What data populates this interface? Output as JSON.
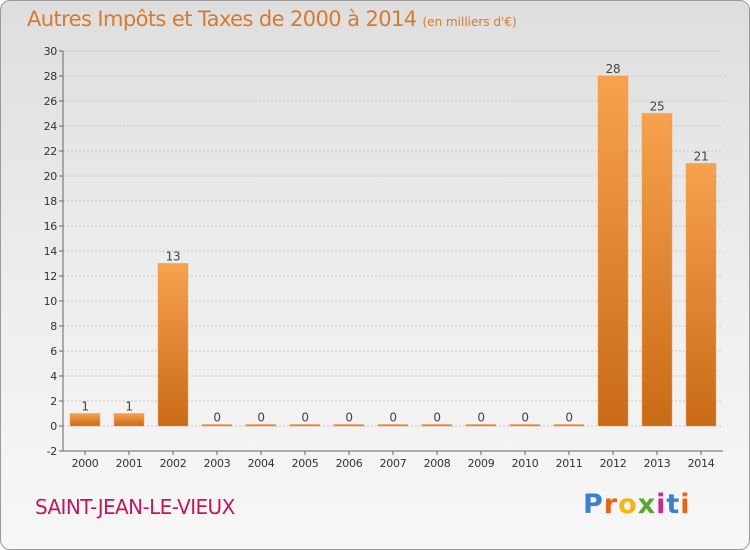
{
  "title": "Autres Impôts et Taxes de 2000 à 2014",
  "unit": "(en milliers d'€)",
  "city": "SAINT-JEAN-LE-VIEUX",
  "logo": {
    "letters": [
      "P",
      "r",
      "o",
      "x",
      "i",
      "t",
      "i"
    ]
  },
  "colors": {
    "title": "#d87a2c",
    "bar_light": "#f7a24e",
    "bar_dark": "#c96a16",
    "city": "#c2185b"
  },
  "chart_data": {
    "type": "bar",
    "title": "Autres Impôts et Taxes de 2000 à 2014",
    "subtitle": "(en milliers d'€)",
    "categories": [
      "2000",
      "2001",
      "2002",
      "2003",
      "2004",
      "2005",
      "2006",
      "2007",
      "2008",
      "2009",
      "2010",
      "2011",
      "2012",
      "2013",
      "2014"
    ],
    "values": [
      1,
      1,
      13,
      0,
      0,
      0,
      0,
      0,
      0,
      0,
      0,
      0,
      28,
      25,
      21
    ],
    "data_labels": [
      "1",
      "1",
      "13",
      "0",
      "0",
      "0",
      "0",
      "0",
      "0",
      "0",
      "0",
      "0",
      "28",
      "25",
      "21"
    ],
    "ylim": [
      -2,
      30
    ],
    "yticks": [
      -2,
      0,
      2,
      4,
      6,
      8,
      10,
      12,
      14,
      16,
      18,
      20,
      22,
      24,
      26,
      28,
      30
    ],
    "grid": true,
    "xlabel": "",
    "ylabel": ""
  }
}
